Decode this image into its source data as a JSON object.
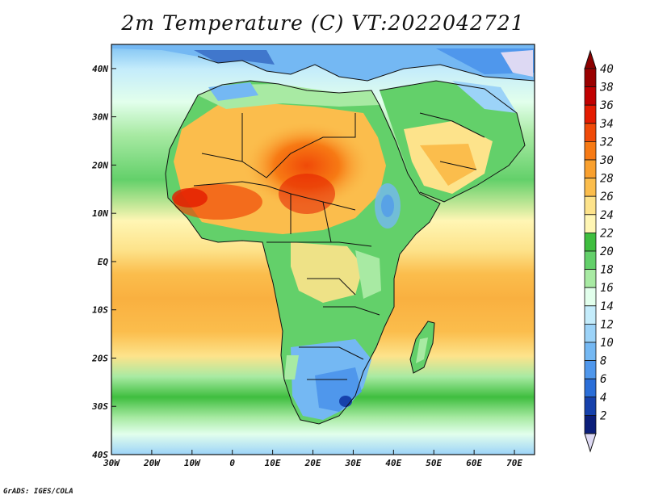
{
  "title": "2m Temperature (C) VT:2022042721",
  "credit": "GrADS: IGES/COLA",
  "map": {
    "type": "heatmap",
    "lon_range": [
      -30,
      75
    ],
    "lat_range": [
      -40,
      45
    ],
    "x_ticks": [
      "30W",
      "20W",
      "10W",
      "0",
      "10E",
      "20E",
      "30E",
      "40E",
      "50E",
      "60E",
      "70E"
    ],
    "y_ticks": [
      "40N",
      "30N",
      "20N",
      "10N",
      "EQ",
      "10S",
      "20S",
      "30S",
      "40S"
    ],
    "colorbar": {
      "labels": [
        "40",
        "38",
        "36",
        "34",
        "32",
        "30",
        "28",
        "26",
        "24",
        "22",
        "20",
        "18",
        "16",
        "14",
        "12",
        "10",
        "8",
        "6",
        "4",
        "2"
      ],
      "colors": [
        "#9a0000",
        "#c10000",
        "#e41b00",
        "#f04a08",
        "#f77a14",
        "#f9a02e",
        "#fbbd4c",
        "#fde38b",
        "#fff6b4",
        "#3fbe3f",
        "#63d06a",
        "#a8eaa3",
        "#e2ffec",
        "#c4ecfb",
        "#9cd3f8",
        "#74b8f3",
        "#4f97ec",
        "#2a6ed8",
        "#1641ac",
        "#0b1e7a"
      ],
      "above_color": "#8b0000",
      "below_color": "#ddd9f3"
    }
  }
}
